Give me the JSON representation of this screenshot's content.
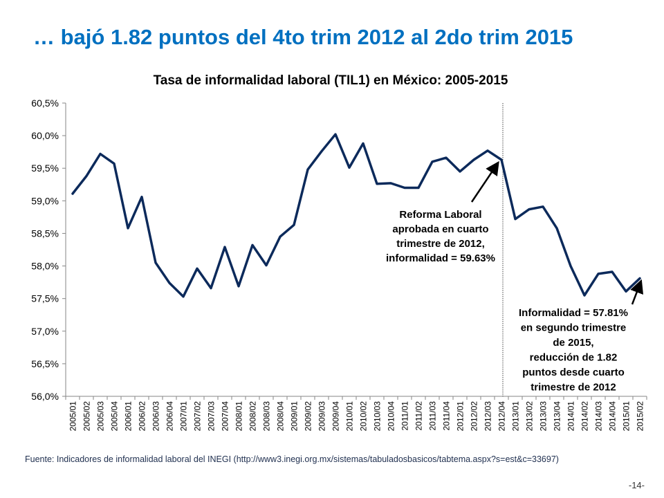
{
  "headline": "… bajó 1.82 puntos del 4to trim 2012 al 2do trim 2015",
  "source": "Fuente: Indicadores de informalidad laboral del INEGI (http://www3.inegi.org.mx/sistemas/tabuladosbasicos/tabtema.aspx?s=est&c=33697)",
  "page_number": "-14-",
  "chart_data": {
    "type": "line",
    "title": "Tasa de informalidad  laboral (TIL1) en México: 2005-2015",
    "xlabel": "",
    "ylabel": "",
    "ylim": [
      56.0,
      60.5
    ],
    "y_ticks": [
      56.0,
      56.5,
      57.0,
      57.5,
      58.0,
      58.5,
      59.0,
      59.5,
      60.0,
      60.5
    ],
    "y_tick_labels": [
      "56,0%",
      "56,5%",
      "57,0%",
      "57,5%",
      "58,0%",
      "58,5%",
      "59,0%",
      "59,5%",
      "60,0%",
      "60,5%"
    ],
    "grid": false,
    "legend": "none",
    "line_color": "#0c2a5b",
    "categories": [
      "2005/01",
      "2005/02",
      "2005/03",
      "2005/04",
      "2006/01",
      "2006/02",
      "2006/03",
      "2006/04",
      "2007/01",
      "2007/02",
      "2007/03",
      "2007/04",
      "2008/01",
      "2008/02",
      "2008/03",
      "2008/04",
      "2009/01",
      "2009/02",
      "2009/03",
      "2009/04",
      "2010/01",
      "2010/02",
      "2010/03",
      "2010/04",
      "2011/01",
      "2011/02",
      "2011/03",
      "2011/04",
      "2012/01",
      "2012/02",
      "2012/03",
      "2012/04",
      "2013/01",
      "2013/02",
      "2013/03",
      "2013/04",
      "2014/01",
      "2014/02",
      "2014/03",
      "2014/04",
      "2015/01",
      "2015/02"
    ],
    "series": [
      {
        "values": [
          59.11,
          59.38,
          59.72,
          59.57,
          58.58,
          59.06,
          58.05,
          57.74,
          57.53,
          57.96,
          57.66,
          58.29,
          57.69,
          58.32,
          58.01,
          58.45,
          58.63,
          59.48,
          59.76,
          60.02,
          59.51,
          59.88,
          59.26,
          59.27,
          59.2,
          59.2,
          59.6,
          59.66,
          59.45,
          59.63,
          59.77,
          59.63,
          58.72,
          58.87,
          58.91,
          58.58,
          58.0,
          57.55,
          57.88,
          57.91,
          57.61,
          57.81
        ]
      }
    ],
    "vertical_marker_after": "2012/04",
    "annotations": [
      {
        "lines": [
          "Reforma Laboral",
          "aprobada en cuarto",
          "trimestre de 2012,",
          "informalidad = 59.63%"
        ],
        "points_to": "2012/04"
      },
      {
        "lines": [
          "Informalidad = 57.81%",
          "en segundo trimestre",
          "de 2015,",
          "reducción de 1.82",
          "puntos desde cuarto",
          "trimestre de 2012"
        ],
        "points_to": "2015/02"
      }
    ]
  }
}
